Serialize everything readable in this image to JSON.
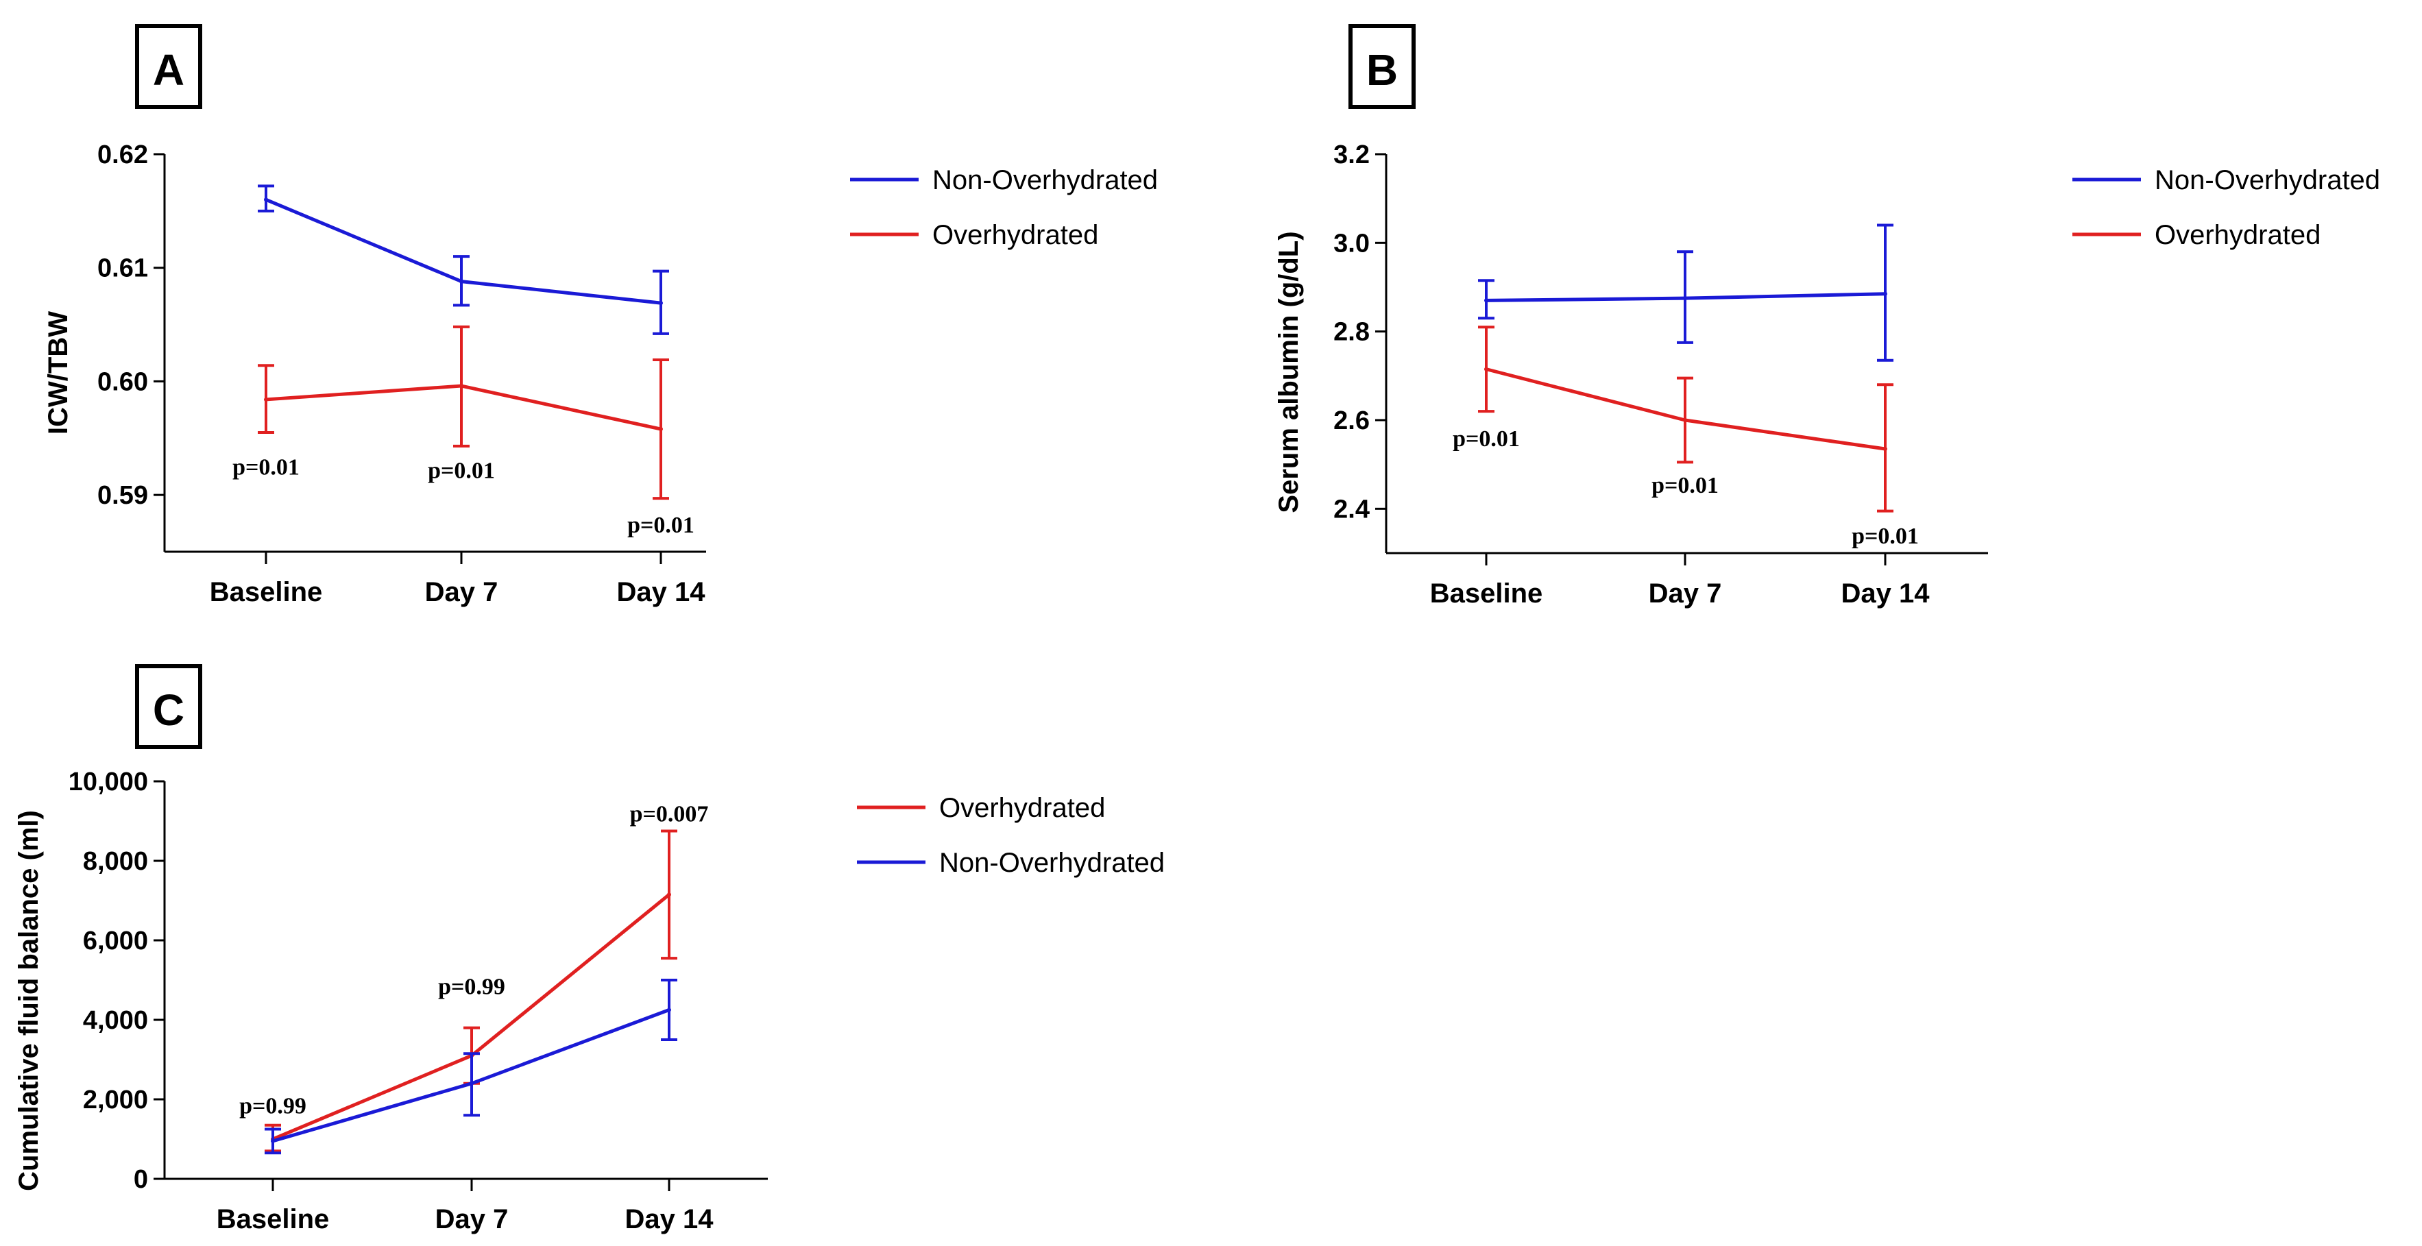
{
  "colors": {
    "non_overhydrated": "#1a1ad6",
    "overhydrated": "#e02020"
  },
  "chart_data": [
    {
      "panel": "A",
      "type": "line",
      "categories": [
        "Baseline",
        "Day 7",
        "Day 14"
      ],
      "ylabel": "ICW/TBW",
      "ylim": [
        0.585,
        0.62
      ],
      "yticks": [
        0.59,
        0.6,
        0.61,
        0.62
      ],
      "ytick_labels": [
        "0.59",
        "0.60",
        "0.61",
        "0.62"
      ],
      "legend": "top-right",
      "series": [
        {
          "name": "Non-Overhydrated",
          "color_key": "non_overhydrated",
          "values": [
            0.616,
            0.6088,
            0.6069
          ],
          "err_low": [
            0.615,
            0.6067,
            0.6042
          ],
          "err_high": [
            0.6172,
            0.611,
            0.6097
          ]
        },
        {
          "name": "Overhydrated",
          "color_key": "overhydrated",
          "values": [
            0.5984,
            0.5996,
            0.5958
          ],
          "err_low": [
            0.5955,
            0.5943,
            0.5897
          ],
          "err_high": [
            0.6014,
            0.6048,
            0.6019
          ]
        }
      ],
      "annotations": [
        {
          "text": "p=0.01",
          "category": "Baseline",
          "y": 0.5925
        },
        {
          "text": "p=0.01",
          "category": "Day 7",
          "y": 0.5922
        },
        {
          "text": "p=0.01",
          "category": "Day 14",
          "y": 0.5874
        }
      ]
    },
    {
      "panel": "B",
      "type": "line",
      "categories": [
        "Baseline",
        "Day 7",
        "Day 14"
      ],
      "ylabel": "Serum albumin (g/dL)",
      "ylim": [
        2.3,
        3.2
      ],
      "yticks": [
        2.4,
        2.6,
        2.8,
        3.0,
        3.2
      ],
      "ytick_labels": [
        "2.4",
        "2.6",
        "2.8",
        "3.0",
        "3.2"
      ],
      "legend": "top-right",
      "series": [
        {
          "name": "Non-Overhydrated",
          "color_key": "non_overhydrated",
          "values": [
            2.87,
            2.875,
            2.885
          ],
          "err_low": [
            2.83,
            2.775,
            2.735
          ],
          "err_high": [
            2.915,
            2.98,
            3.04
          ]
        },
        {
          "name": "Overhydrated",
          "color_key": "overhydrated",
          "values": [
            2.715,
            2.6,
            2.535
          ],
          "err_low": [
            2.62,
            2.505,
            2.395
          ],
          "err_high": [
            2.81,
            2.695,
            2.68
          ]
        }
      ],
      "annotations": [
        {
          "text": "p=0.01",
          "category": "Baseline",
          "y": 2.56
        },
        {
          "text": "p=0.01",
          "category": "Day 7",
          "y": 2.455
        },
        {
          "text": "p=0.01",
          "category": "Day 14",
          "y": 2.34
        }
      ]
    },
    {
      "panel": "C",
      "type": "line",
      "categories": [
        "Baseline",
        "Day 7",
        "Day 14"
      ],
      "ylabel": "Cumulative fluid balance (ml)",
      "ylim": [
        0,
        10000
      ],
      "yticks": [
        0,
        2000,
        4000,
        6000,
        8000,
        10000
      ],
      "ytick_labels": [
        "0",
        "2,000",
        "4,000",
        "6,000",
        "8,000",
        "10,000"
      ],
      "legend": "top-right",
      "series": [
        {
          "name": "Overhydrated",
          "color_key": "overhydrated",
          "values": [
            1000,
            3100,
            7150
          ],
          "err_low": [
            700,
            2400,
            5550
          ],
          "err_high": [
            1350,
            3800,
            8750
          ]
        },
        {
          "name": "Non-Overhydrated",
          "color_key": "non_overhydrated",
          "values": [
            950,
            2400,
            4250
          ],
          "err_low": [
            650,
            1600,
            3500
          ],
          "err_high": [
            1250,
            3150,
            5000
          ]
        }
      ],
      "annotations": [
        {
          "text": "p=0.99",
          "category": "Baseline",
          "y": 1850
        },
        {
          "text": "p=0.99",
          "category": "Day 7",
          "y": 4850
        },
        {
          "text": "p=0.007",
          "category": "Day 14",
          "y": 9200
        }
      ]
    }
  ]
}
